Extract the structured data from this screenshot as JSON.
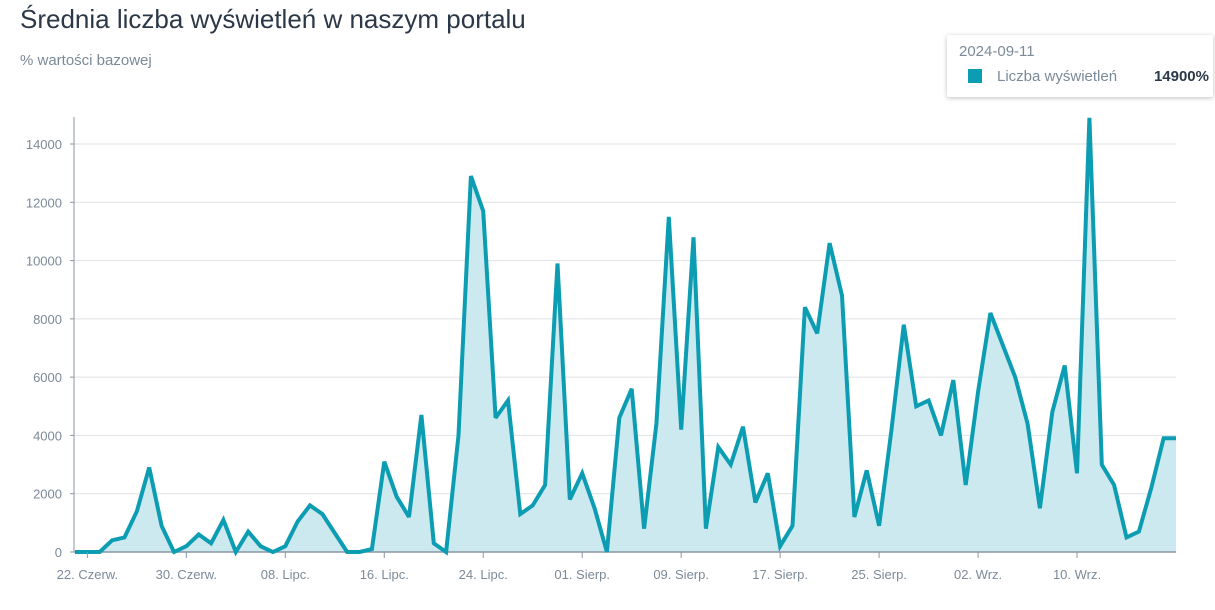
{
  "colors": {
    "line": "#0c9db3",
    "fill": "#cde9f0",
    "grid": "#dde1e5",
    "axis": "#8a96a3"
  },
  "chart_data": {
    "type": "area",
    "title": "Średnia liczba wyświetleń w naszym portalu",
    "subtitle": "% wartości bazowej",
    "xlabel": "",
    "ylabel": "",
    "ylim": [
      0,
      14900
    ],
    "y_ticks": [
      0,
      2000,
      4000,
      6000,
      8000,
      10000,
      12000,
      14000
    ],
    "grid": true,
    "x_ticks": [
      {
        "label": "22. Czerw.",
        "index": 1
      },
      {
        "label": "30. Czerw.",
        "index": 9
      },
      {
        "label": "08. Lipc.",
        "index": 17
      },
      {
        "label": "16. Lipc.",
        "index": 25
      },
      {
        "label": "24. Lipc.",
        "index": 33
      },
      {
        "label": "01. Sierp.",
        "index": 41
      },
      {
        "label": "09. Sierp.",
        "index": 49
      },
      {
        "label": "17. Sierp.",
        "index": 57
      },
      {
        "label": "25. Sierp.",
        "index": 65
      },
      {
        "label": "02. Wrz.",
        "index": 73
      },
      {
        "label": "10. Wrz.",
        "index": 81
      }
    ],
    "series": [
      {
        "name": "Liczba wyświetleń",
        "values": [
          0,
          0,
          0,
          400,
          500,
          1400,
          2900,
          900,
          0,
          200,
          600,
          300,
          1100,
          0,
          700,
          200,
          0,
          200,
          1050,
          1600,
          1300,
          650,
          0,
          0,
          100,
          3100,
          1900,
          1200,
          4700,
          300,
          0,
          4000,
          12900,
          11700,
          4600,
          5200,
          1300,
          1600,
          2300,
          9900,
          1800,
          2700,
          1500,
          0,
          4600,
          5600,
          800,
          4400,
          11500,
          4200,
          10800,
          800,
          3600,
          3000,
          4300,
          1700,
          2700,
          200,
          900,
          8400,
          7500,
          10600,
          8800,
          1200,
          2800,
          900,
          4200,
          7800,
          5000,
          5200,
          4000,
          5900,
          2300,
          5500,
          8200,
          7100,
          6000,
          4400,
          1500,
          4800,
          6400,
          2700,
          14900,
          3000,
          2300,
          500,
          700,
          2200,
          3900,
          3900
        ]
      }
    ]
  },
  "tooltip": {
    "date": "2024-09-11",
    "series": "Liczba wyświetleń",
    "value": "14900%"
  }
}
